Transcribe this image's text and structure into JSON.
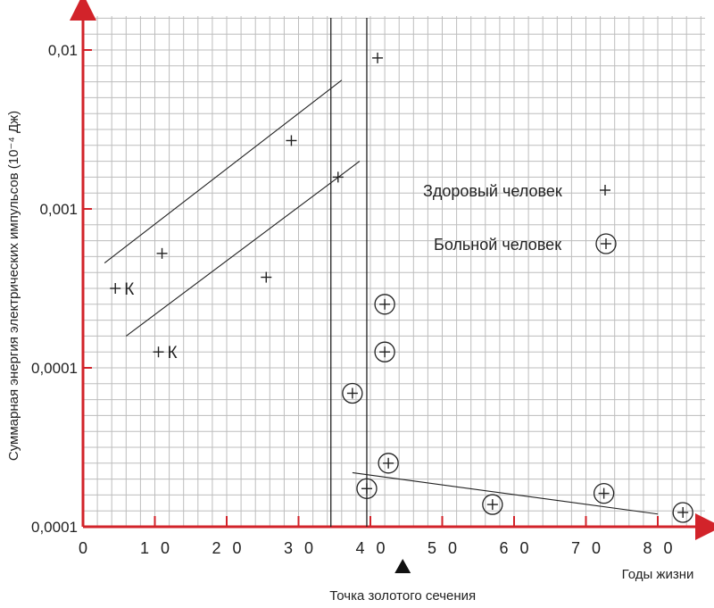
{
  "chart_data": {
    "type": "scatter",
    "title": "",
    "ylabel": "Суммарная энергия электрических импульсов (10⁻⁴ Дж)",
    "xlabel": "Годы жизни",
    "xlim": [
      0,
      87
    ],
    "ylim_log_decades": [
      0,
      3.25
    ],
    "y_scale": "log",
    "x_ticks": [
      0,
      10,
      20,
      30,
      40,
      50,
      60,
      70,
      80
    ],
    "x_tick_labels": [
      "0",
      "1 0",
      "2 0",
      "3 0",
      "4 0",
      "5 0",
      "6 0",
      "7 0",
      "8 0"
    ],
    "y_tick_labels": [
      "0,0001",
      "0,0001",
      "0,001",
      "0,01"
    ],
    "y_tick_decades": [
      0,
      1,
      2,
      3
    ],
    "grid": true,
    "legend_position": "right",
    "series": [
      {
        "name": "Здоровый человек",
        "marker": "plus",
        "points": [
          {
            "x": 4.5,
            "y": 1.5
          },
          {
            "x": 10.5,
            "y": 1.1
          },
          {
            "x": 11,
            "y": 1.72
          },
          {
            "x": 25.5,
            "y": 1.57
          },
          {
            "x": 29,
            "y": 2.43
          },
          {
            "x": 35.5,
            "y": 2.2
          },
          {
            "x": 41,
            "y": 2.95
          }
        ]
      },
      {
        "name": "Больной человек",
        "marker": "circled-plus",
        "points": [
          {
            "x": 37.5,
            "y": 0.84
          },
          {
            "x": 39.5,
            "y": 0.24
          },
          {
            "x": 42,
            "y": 1.4
          },
          {
            "x": 42,
            "y": 1.1
          },
          {
            "x": 42.5,
            "y": 0.4
          },
          {
            "x": 57,
            "y": 0.14
          },
          {
            "x": 72.5,
            "y": 0.21
          },
          {
            "x": 83.5,
            "y": 0.09
          }
        ]
      }
    ],
    "point_annotations": [
      {
        "x": 4.5,
        "y": 1.5,
        "text": "К"
      },
      {
        "x": 10.5,
        "y": 1.1,
        "text": "К"
      }
    ],
    "trend_lines": [
      {
        "from": {
          "x": 3,
          "y": 1.66
        },
        "to": {
          "x": 36,
          "y": 2.81
        }
      },
      {
        "from": {
          "x": 6,
          "y": 1.2
        },
        "to": {
          "x": 38.5,
          "y": 2.3
        }
      },
      {
        "from": {
          "x": 37.5,
          "y": 0.34
        },
        "to": {
          "x": 80,
          "y": 0.08
        }
      }
    ],
    "vertical_lines": [
      {
        "x": 34.5
      },
      {
        "x": 39.5
      }
    ],
    "markers": [
      {
        "x": 44.5,
        "text": "Точка золотого сечения"
      }
    ],
    "legend": [
      {
        "label": "Здоровый человек",
        "marker": "plus"
      },
      {
        "label": "Больной человек",
        "marker": "circled-plus"
      }
    ]
  },
  "colors": {
    "axis": "#d2232a",
    "grid": "#bdbdbd",
    "ink": "#222222",
    "background": "#ffffff"
  }
}
